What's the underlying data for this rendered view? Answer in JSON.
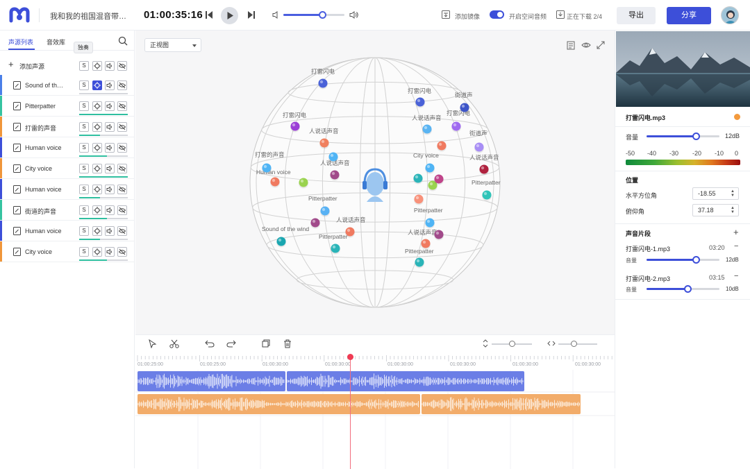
{
  "header": {
    "doc_title": "我和我的祖国混音带…",
    "timecode": "01:00:35:16",
    "volume_fraction": 0.64,
    "add_mirror_label": "添加镜像",
    "spatial_audio_label": "开启空间音频",
    "spatial_audio_on": true,
    "download_status": "正在下载 2/4",
    "export_label": "导出",
    "share_label": "分享"
  },
  "sidebar": {
    "tabs": [
      {
        "label": "声源列表",
        "active": true
      },
      {
        "label": "音效库",
        "active": false
      }
    ],
    "tooltip": "独奏",
    "add_source_label": "添加声源",
    "button_labels": {
      "solo": "S"
    },
    "sources": [
      {
        "name": "Sound of th…",
        "stripe": "#4a7fe8",
        "level": 0.0,
        "level_color": "#3d4fd9",
        "spatial_on": true
      },
      {
        "name": "Pitterpatter",
        "stripe": "#35c3a0",
        "level": 1.0,
        "level_color": "#2fbfa0",
        "spatial_on": false
      },
      {
        "name": "打雷的声音",
        "stripe": "#f0963a",
        "level": 0.43,
        "level_color": "#2fbfa0",
        "spatial_on": false
      },
      {
        "name": "Human voice",
        "stripe": "#3d4fd9",
        "level": 0.57,
        "level_color": "#2fbfa0",
        "spatial_on": false
      },
      {
        "name": "City voice",
        "stripe": "#f0963a",
        "level": 1.0,
        "level_color": "#2fbfa0",
        "spatial_on": false
      },
      {
        "name": "Human voice",
        "stripe": "#3d4fd9",
        "level": 0.43,
        "level_color": "#2fbfa0",
        "spatial_on": false
      },
      {
        "name": "街道的声音",
        "stripe": "#35c3a0",
        "level": 0.57,
        "level_color": "#2fbfa0",
        "spatial_on": false
      },
      {
        "name": "Human voice",
        "stripe": "#3d4fd9",
        "level": 0.43,
        "level_color": "#2fbfa0",
        "spatial_on": false
      },
      {
        "name": "City voice",
        "stripe": "#f0963a",
        "level": 0.57,
        "level_color": "#2fbfa0",
        "spatial_on": false
      }
    ]
  },
  "stage": {
    "view_mode": "正视图",
    "sound_labels": [
      "打雷闪电",
      "打雷闪电",
      "街道声",
      "打雷闪电",
      "打雷闪电",
      "人说话声音",
      "人说话声音",
      "街道声",
      "人说话声音",
      "打雷的声音",
      "City voice",
      "人说话声音",
      "Human voice",
      "Pitterpatter",
      "Pitterpatter",
      "Pitterpatter",
      "人说话声音",
      "Sound of the wind",
      "Pitterpatter",
      "人说话声音",
      "Pitterpatter"
    ]
  },
  "timeline": {
    "ruler_labels": [
      "01:00:25:00",
      "01:00:25:00",
      "01:00:30:00",
      "01:00:30:00",
      "01:00:30:00",
      "01:00:30:00",
      "01:00:30:00",
      "01:00:30:00"
    ],
    "colors": {
      "track1": "#6b7ee6",
      "track2": "#f2ac6a",
      "playhead": "#ef3b53"
    }
  },
  "right_panel": {
    "file_name": "打雷闪电.mp3",
    "file_dot_color": "#f39a3d",
    "volume_label": "音量",
    "volume_value": "12dB",
    "volume_fraction": 0.68,
    "meter_scale": [
      "-50",
      "-40",
      "-30",
      "-20",
      "-10",
      "0"
    ],
    "position_heading": "位置",
    "azimuth_label": "水平方位角",
    "azimuth_value": "-18.55",
    "elevation_label": "俯仰角",
    "elevation_value": "37.18",
    "segments_heading": "声音片段",
    "segments": [
      {
        "name": "打雷闪电-1.mp3",
        "duration": "03:20",
        "vol_label": "音量",
        "vol_value": "12dB",
        "vol_fraction": 0.68
      },
      {
        "name": "打雷闪电-2.mp3",
        "duration": "03:15",
        "vol_label": "音量",
        "vol_value": "10dB",
        "vol_fraction": 0.56
      }
    ]
  }
}
